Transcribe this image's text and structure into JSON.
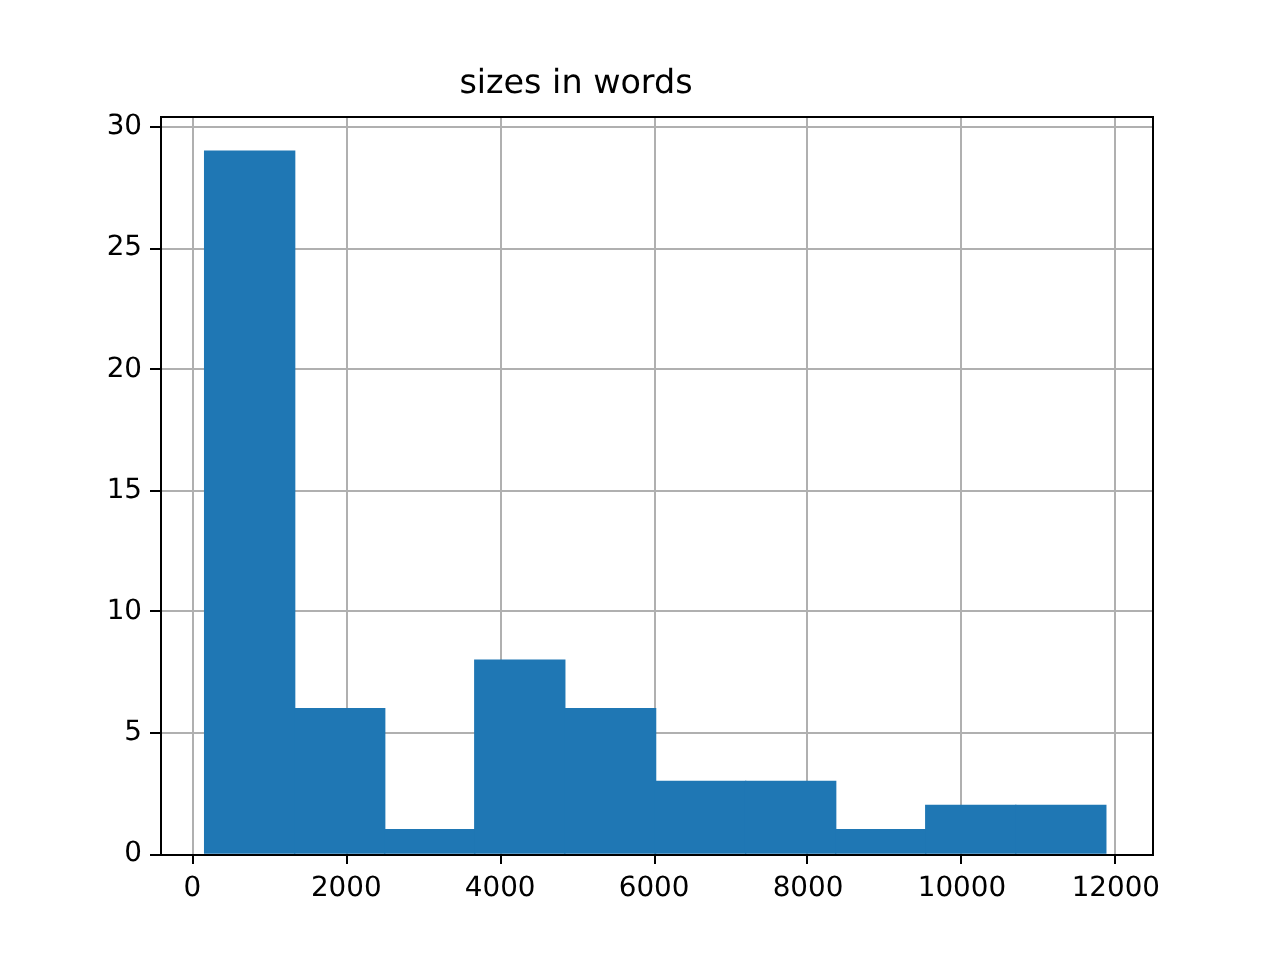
{
  "chart_data": {
    "type": "histogram",
    "title": "sizes in words",
    "bins": [
      160,
      1330,
      2500,
      3670,
      4840,
      6020,
      7190,
      8360,
      9530,
      10700,
      11870
    ],
    "values": [
      29,
      6,
      1,
      8,
      6,
      3,
      3,
      1,
      2,
      2
    ],
    "color": "#1f77b4",
    "xlim": [
      -420,
      12470
    ],
    "xticks": [
      0,
      2000,
      4000,
      6000,
      8000,
      10000,
      12000
    ],
    "ylim": [
      0,
      30.45
    ],
    "yticks": [
      0,
      5,
      10,
      15,
      20,
      25,
      30
    ],
    "grid": true
  }
}
